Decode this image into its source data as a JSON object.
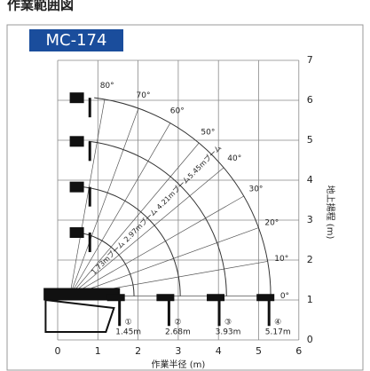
{
  "title": "作業範囲図",
  "model": "MC-174",
  "x_axis": {
    "label": "作業半径 (m)",
    "ticks": [
      "0",
      "1",
      "2",
      "3",
      "4",
      "5",
      "6"
    ]
  },
  "y_axis": {
    "label": "地上揚程 (m)",
    "ticks": [
      "0",
      "1",
      "2",
      "3",
      "4",
      "5",
      "6",
      "7"
    ]
  },
  "angles": [
    "80°",
    "70°",
    "60°",
    "50°",
    "40°",
    "30°",
    "20°",
    "10°",
    "0°"
  ],
  "booms": [
    "1.73mブーム",
    "2.97mブーム",
    "4.21mブーム",
    "5.45mブーム"
  ],
  "radii": [
    {
      "marker": "①",
      "label": "1.45m"
    },
    {
      "marker": "②",
      "label": "2.68m"
    },
    {
      "marker": "③",
      "label": "3.93m"
    },
    {
      "marker": "④",
      "label": "5.17m"
    }
  ]
}
